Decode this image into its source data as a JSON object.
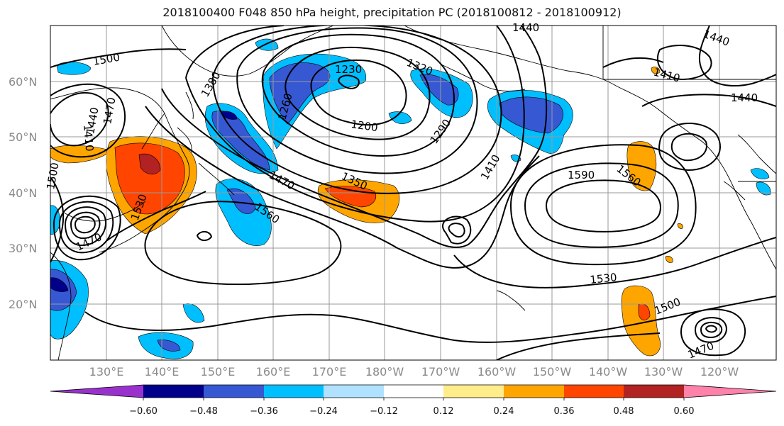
{
  "title": "2018100400 F048 850 hPa height, precipitation PC (2018100812 - 2018100912)",
  "lat_labels": [
    "60°N",
    "50°N",
    "40°N",
    "30°N",
    "20°N"
  ],
  "lon_labels": [
    "130°E",
    "140°E",
    "150°E",
    "160°E",
    "170°E",
    "180°W",
    "170°W",
    "160°W",
    "150°W",
    "140°W",
    "130°W",
    "120°W"
  ],
  "colorbar": {
    "colors": [
      "#9932cc",
      "#00008b",
      "#3658d3",
      "#00bfff",
      "#b0e2ff",
      "#ffffff",
      "#ffec8b",
      "#ffa500",
      "#ff4500",
      "#b22222",
      "#ff82ab"
    ],
    "ticks": [
      "−0.60",
      "−0.48",
      "−0.36",
      "−0.24",
      "−0.12",
      "0.12",
      "0.24",
      "0.36",
      "0.48",
      "0.60"
    ]
  },
  "contour_labels": [
    "1500",
    "1230",
    "1320",
    "1440",
    "1440",
    "1410",
    "1440",
    "1380",
    "1260",
    "1410",
    "1440",
    "1470",
    "1200",
    "1290",
    "1410",
    "1350",
    "1470",
    "1590",
    "1560",
    "1500",
    "1530",
    "1470",
    "1560",
    "1530",
    "1500",
    "1470"
  ]
}
